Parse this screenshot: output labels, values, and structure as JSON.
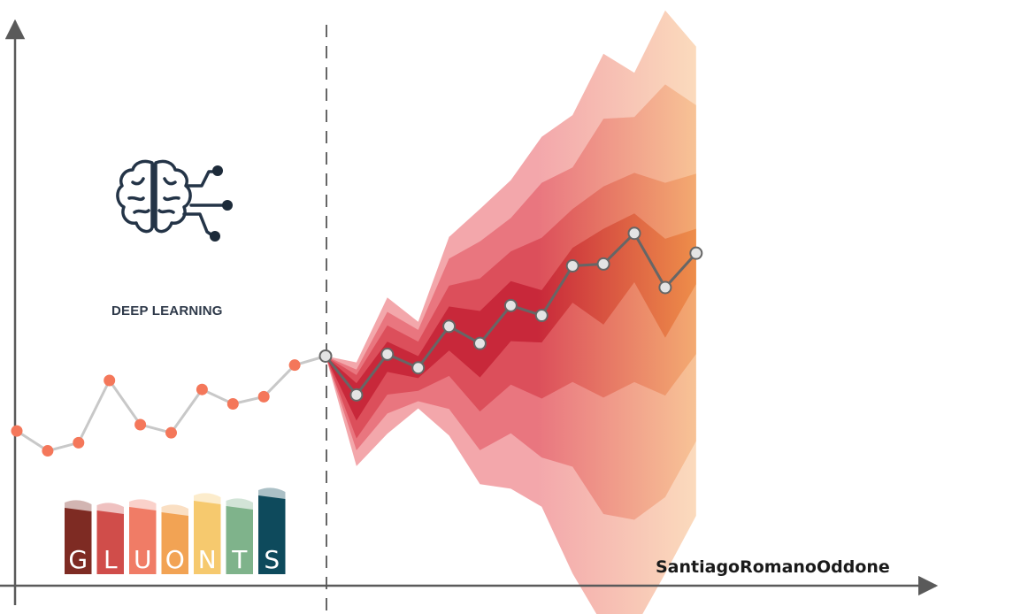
{
  "chart_data": {
    "type": "line",
    "title": "",
    "xlabel": "",
    "ylabel": "",
    "history": {
      "x": [
        0,
        1,
        2,
        3,
        4,
        5,
        6,
        7,
        8,
        9,
        10
      ],
      "y": [
        -5.6,
        -7.8,
        -6.9,
        0.0,
        -4.9,
        -5.8,
        -1.0,
        -2.6,
        -1.8,
        1.7,
        2.7
      ],
      "line_color": "#c8c8c8",
      "point_color": "#f4775a"
    },
    "forecast": {
      "x": [
        10,
        11,
        12,
        13,
        14,
        15,
        16,
        17,
        18,
        19,
        20,
        21,
        22
      ],
      "median": [
        2.7,
        -1.6,
        2.9,
        1.4,
        6.0,
        4.1,
        8.3,
        7.2,
        12.7,
        12.9,
        16.3,
        10.3,
        14.1
      ],
      "line_color": "#666666",
      "bands": [
        {
          "level": "outer",
          "upper": [
            2.7,
            2.0,
            9.2,
            6.5,
            15.9,
            19.0,
            22.2,
            27.0,
            29.4,
            36.2,
            34.1,
            41.0,
            37.0
          ],
          "lower": [
            2.7,
            -9.5,
            -5.9,
            -3.1,
            -6.1,
            -11.5,
            -12.0,
            -14.0,
            -21.4,
            -27.2,
            -27.5,
            -21.4,
            -15.0
          ]
        },
        {
          "level": "mid-outer",
          "upper": [
            2.7,
            1.2,
            7.6,
            5.6,
            13.5,
            15.4,
            18.0,
            21.9,
            23.6,
            29.0,
            29.2,
            32.8,
            30.5
          ]
        },
        {
          "level": "mid",
          "upper": [
            2.7,
            0.6,
            6.1,
            4.3,
            10.5,
            11.3,
            14.3,
            15.8,
            19.0,
            21.5,
            23.0,
            21.9,
            22.9
          ]
        },
        {
          "level": "inner",
          "upper": [
            2.7,
            -0.3,
            4.3,
            2.7,
            8.2,
            7.7,
            11.0,
            10.0,
            14.7,
            16.8,
            18.5,
            15.7,
            16.8
          ]
        }
      ],
      "colors_near": [
        "#f3a7ab",
        "#e9767f",
        "#dc4f5b",
        "#c8283a"
      ],
      "colors_far": [
        "#fde7c1",
        "#fbd59b",
        "#f9c077",
        "#f7a64e"
      ]
    },
    "forecast_start_x": 10,
    "grid": false,
    "legend": "none"
  },
  "annotations": {
    "deep_learning_label": "DEEP LEARNING",
    "brain_icon": "brain-circuit-icon",
    "watermark": "SantiagoRomanoOddone"
  },
  "logo": {
    "letters": [
      "G",
      "L",
      "U",
      "O",
      "N",
      "T",
      "S"
    ],
    "colors": [
      "#7e2b23",
      "#d04d4a",
      "#f07c66",
      "#f2a354",
      "#f6c96e",
      "#7fb38b",
      "#0e4a5c"
    ]
  },
  "axes_color": "#5a5a5a"
}
